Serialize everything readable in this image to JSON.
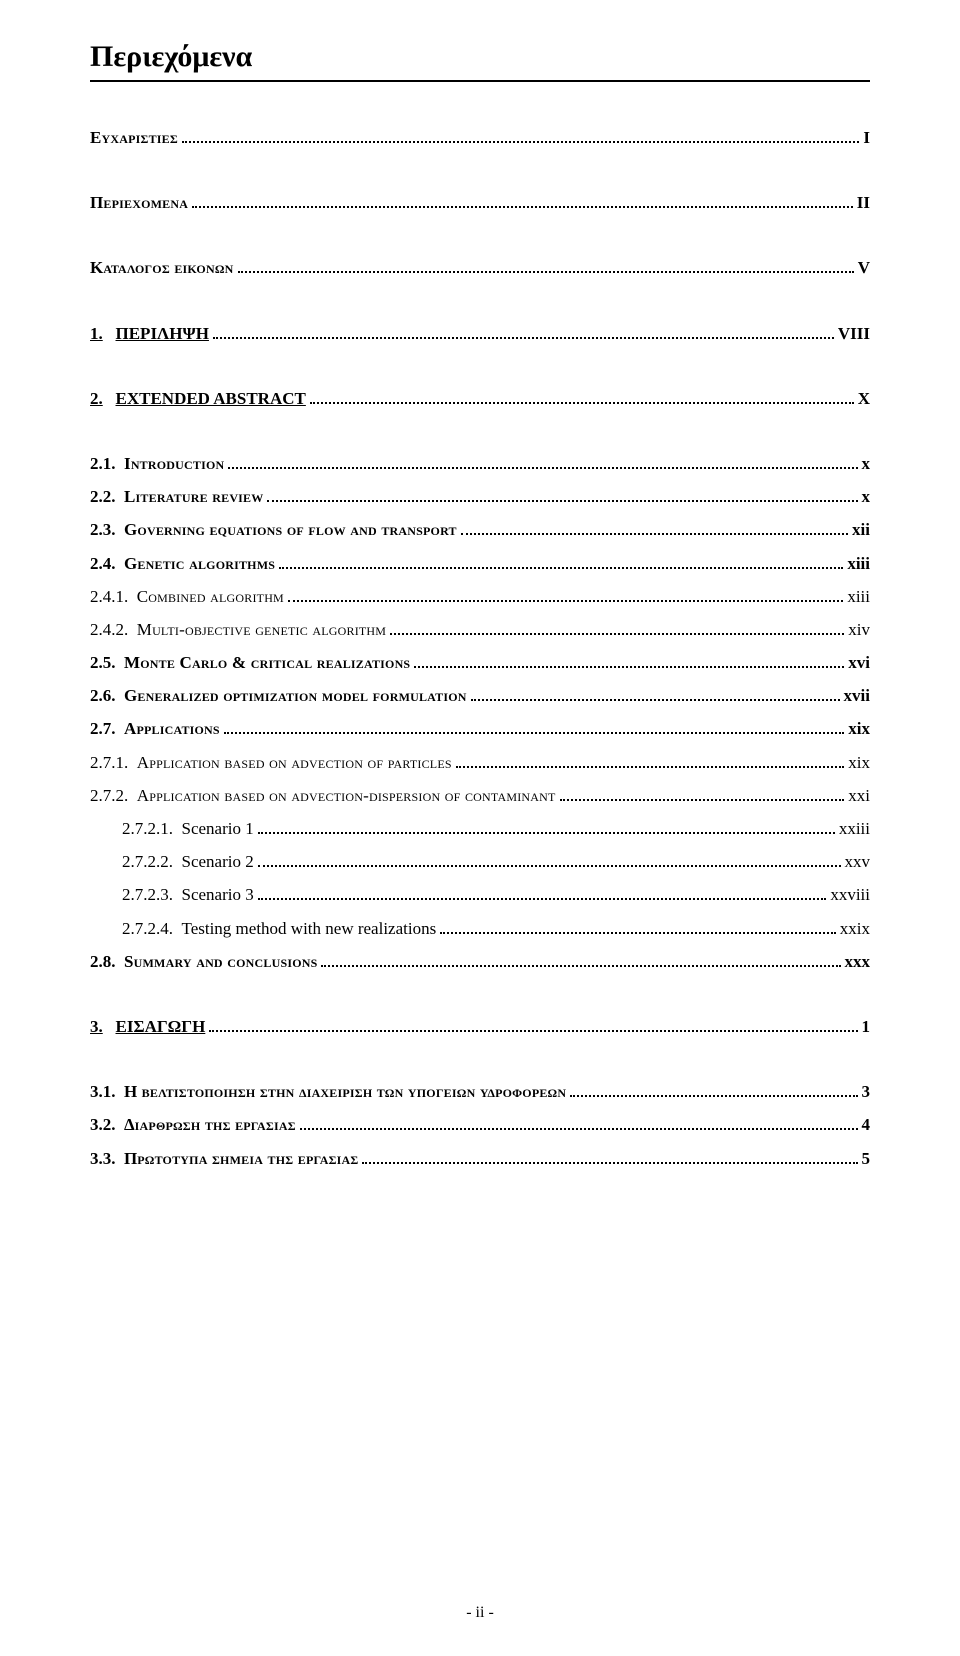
{
  "pageTitle": "Περιεχόμενα",
  "footer": "- ii -",
  "entries": [
    {
      "id": "e1",
      "level": 0,
      "labelBold": true,
      "scText": "Ευχαριστιες",
      "pageText": "I",
      "pageBold": true,
      "gapAfter": true
    },
    {
      "id": "e2",
      "level": 0,
      "labelBold": true,
      "scText": "Περιεχομενα",
      "pageText": "II",
      "pageBold": true,
      "gapAfter": true
    },
    {
      "id": "e3",
      "level": 0,
      "labelBold": true,
      "upperPrefix": "Κ",
      "scText": "αταλογος εικονων",
      "pageText": "V",
      "pageBold": true,
      "gapAfter": true
    },
    {
      "id": "e4",
      "level": 0,
      "num": "1.",
      "underline": true,
      "text": "ΠΕΡΙΛΗΨΗ",
      "pageText": "VIII",
      "pageBold": true,
      "gapAfter": true
    },
    {
      "id": "e5",
      "level": 0,
      "num": "2.",
      "underline": true,
      "text": "EXTENDED ABSTRACT",
      "pageText": "X",
      "pageBold": true
    },
    {
      "id": "e6",
      "level": 1,
      "num": "2.1.",
      "scBoldText": "Introduction",
      "pageText": "x",
      "pageSc": true,
      "pageBold": true
    },
    {
      "id": "e7",
      "level": 1,
      "num": "2.2.",
      "scBoldText": "Literature review",
      "pageText": "x",
      "pageSc": true,
      "pageBold": true
    },
    {
      "id": "e8",
      "level": 1,
      "num": "2.3.",
      "scBoldText": "Governing equations of flow and transport",
      "pageText": "xii",
      "pageSc": true,
      "pageBold": true
    },
    {
      "id": "e9",
      "level": 1,
      "num": "2.4.",
      "scBoldText": "Genetic algorithms",
      "pageText": "xiii",
      "pageSc": true,
      "pageBold": true
    },
    {
      "id": "e10",
      "level": 2,
      "plainNum": "2.4.1.",
      "scText": "Combined algorithm",
      "pageText": "xiii",
      "pageSc": true
    },
    {
      "id": "e11",
      "level": 2,
      "plainNum": "2.4.2.",
      "scText": "Multi-objective genetic algorithm",
      "pageText": "xiv",
      "pageSc": true
    },
    {
      "id": "e12",
      "level": 1,
      "num": "2.5.",
      "scBoldText": "Monte Carlo & critical realizations",
      "pageText": "xvi",
      "pageSc": true,
      "pageBold": true
    },
    {
      "id": "e13",
      "level": 1,
      "num": "2.6.",
      "scBoldText": "Generalized optimization model formulation",
      "pageText": "xvii",
      "pageSc": true,
      "pageBold": true
    },
    {
      "id": "e14",
      "level": 1,
      "num": "2.7.",
      "scBoldText": "Applications",
      "pageText": "xix",
      "pageSc": true,
      "pageBold": true
    },
    {
      "id": "e15",
      "level": 2,
      "plainNum": "2.7.1.",
      "scText": "Application based on advection of particles",
      "pageText": "xix",
      "pageSc": true
    },
    {
      "id": "e16",
      "level": 2,
      "plainNum": "2.7.2.",
      "scText": "Application based on advection-dispersion of contaminant",
      "pageText": "xxi",
      "pageSc": true
    },
    {
      "id": "e17",
      "level": 3,
      "plainNum": "2.7.2.1.",
      "plainText": "Scenario 1",
      "pageText": "xxiii"
    },
    {
      "id": "e18",
      "level": 3,
      "plainNum": "2.7.2.2.",
      "plainText": "Scenario 2",
      "pageText": "xxv"
    },
    {
      "id": "e19",
      "level": 3,
      "plainNum": "2.7.2.3.",
      "plainText": "Scenario 3",
      "pageText": "xxviii"
    },
    {
      "id": "e20",
      "level": 3,
      "plainNum": "2.7.2.4.",
      "plainText": "Testing method with new realizations",
      "pageText": "xxix"
    },
    {
      "id": "e21",
      "level": 1,
      "num": "2.8.",
      "scBoldText": "Summary and conclusions",
      "pageText": "xxx",
      "pageSc": true,
      "pageBold": true,
      "gapAfter": true
    },
    {
      "id": "e22",
      "level": 0,
      "num": "3.",
      "underline": true,
      "text": "ΕΙΣΑΓΩΓΗ",
      "pageText": "1",
      "pageBold": true,
      "gapAfter": true
    },
    {
      "id": "e23",
      "level": 1,
      "num": "3.1.",
      "upperPrefix": "Η",
      "scBoldText": " βελτιστοποιηση στην διαχειριση των υπογειων υδροφορεων",
      "pageText": "3",
      "pageBold": true
    },
    {
      "id": "e24",
      "level": 1,
      "num": "3.2.",
      "upperPrefix": "Δ",
      "scBoldText": "ιαρθρωση της εργασιας",
      "pageText": "4",
      "pageBold": true
    },
    {
      "id": "e25",
      "level": 1,
      "num": "3.3.",
      "upperPrefix": "Π",
      "scBoldText": "ρωτοτυπα σημεια της εργασιας",
      "pageText": "5",
      "pageBold": true
    }
  ]
}
